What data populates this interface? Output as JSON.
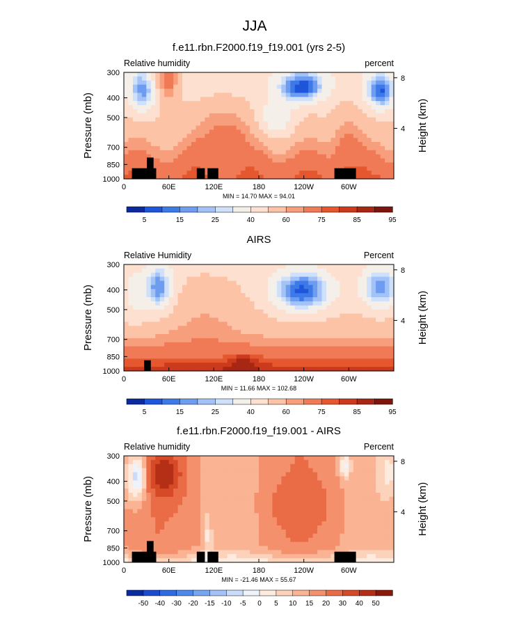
{
  "figure": {
    "title": "JJA"
  },
  "chart_data": [
    {
      "type": "heatmap",
      "title": "f.e11.rbn.F2000.f19_f19.001 (yrs 2-5)",
      "left_label": "Relative humidity",
      "right_label": "percent",
      "ylabel": "Pressure (mb)",
      "ylabel_right": "Height (km)",
      "x_ticks": [
        "0",
        "60E",
        "120E",
        "180",
        "120W",
        "60W"
      ],
      "y_ticks": [
        "300",
        "400",
        "500",
        "700",
        "850",
        "1000"
      ],
      "y_right_ticks": [
        "8",
        "4"
      ],
      "stats": "MIN = 14.70 MAX = 94.01",
      "min": 14.7,
      "max": 94.01,
      "colorbar_labels": [
        "5",
        "15",
        "25",
        "40",
        "60",
        "75",
        "85",
        "95"
      ],
      "colorbar_colors": [
        "#0a2a9e",
        "#1e55d9",
        "#3d7ae8",
        "#6d9cf0",
        "#a3c2f6",
        "#cfe0fa",
        "#f5efe9",
        "#fde0cf",
        "#fcc3a6",
        "#f79e7c",
        "#f07a55",
        "#e4572f",
        "#cc3a1d",
        "#a82614",
        "#7d150c"
      ],
      "style": "model"
    },
    {
      "type": "heatmap",
      "title": "AIRS",
      "left_label": "Relative Humidity",
      "right_label": "Percent",
      "ylabel": "Pressure (mb)",
      "ylabel_right": "Height (km)",
      "x_ticks": [
        "0",
        "60E",
        "120E",
        "180",
        "120W",
        "60W"
      ],
      "y_ticks": [
        "300",
        "400",
        "500",
        "700",
        "850",
        "1000"
      ],
      "y_right_ticks": [
        "8",
        "4"
      ],
      "stats": "MIN = 11.66 MAX = 102.68",
      "min": 11.66,
      "max": 102.68,
      "colorbar_labels": [
        "5",
        "15",
        "25",
        "40",
        "60",
        "75",
        "85",
        "95"
      ],
      "colorbar_colors": [
        "#0a2a9e",
        "#1e55d9",
        "#3d7ae8",
        "#6d9cf0",
        "#a3c2f6",
        "#cfe0fa",
        "#f5efe9",
        "#fde0cf",
        "#fcc3a6",
        "#f79e7c",
        "#f07a55",
        "#e4572f",
        "#cc3a1d",
        "#a82614",
        "#7d150c"
      ],
      "style": "obs"
    },
    {
      "type": "heatmap",
      "title": "f.e11.rbn.F2000.f19_f19.001 - AIRS",
      "left_label": "Relative humidity",
      "right_label": "Percent",
      "ylabel": "Pressure (mb)",
      "ylabel_right": "Height (km)",
      "x_ticks": [
        "0",
        "60E",
        "120E",
        "180",
        "120W",
        "60W"
      ],
      "y_ticks": [
        "300",
        "400",
        "500",
        "700",
        "850",
        "1000"
      ],
      "y_right_ticks": [
        "8",
        "4"
      ],
      "stats": "MIN = -21.46 MAX = 55.67",
      "min": -21.46,
      "max": 55.67,
      "colorbar_labels": [
        "-50",
        "-40",
        "-30",
        "-20",
        "-15",
        "-10",
        "-5",
        "0",
        "5",
        "10",
        "15",
        "20",
        "30",
        "40",
        "50"
      ],
      "colorbar_colors": [
        "#0a2a9e",
        "#1a4bd0",
        "#2f6be3",
        "#4d88ec",
        "#76a6f2",
        "#a3c2f6",
        "#cadcf9",
        "#eef2fb",
        "#fdebe0",
        "#fcd2bb",
        "#fab393",
        "#f4906c",
        "#ea6c47",
        "#d64a27",
        "#b52e16",
        "#8a190c"
      ],
      "style": "diff"
    }
  ]
}
